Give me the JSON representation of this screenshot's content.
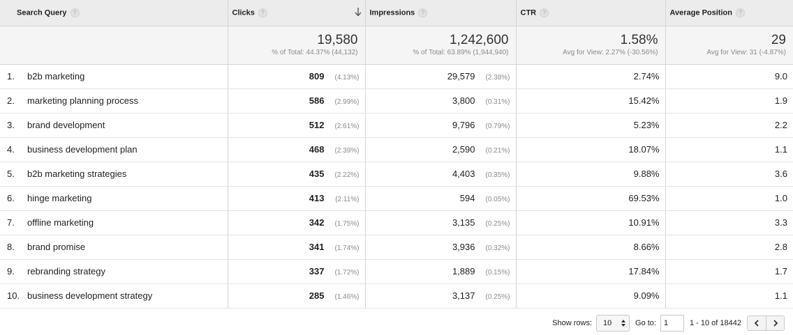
{
  "columns": {
    "query": "Search Query",
    "clicks": "Clicks",
    "impressions": "Impressions",
    "ctr": "CTR",
    "position": "Average Position",
    "help": "?"
  },
  "totals": {
    "clicks": {
      "value": "19,580",
      "sub": "% of Total: 44.37% (44,132)"
    },
    "impressions": {
      "value": "1,242,600",
      "sub": "% of Total: 63.89% (1,944,940)"
    },
    "ctr": {
      "value": "1.58%",
      "sub": "Avg for View: 2.27% (-30.56%)"
    },
    "position": {
      "value": "29",
      "sub": "Avg for View: 31 (-4.87%)"
    }
  },
  "rows": [
    {
      "idx": "1.",
      "query": "b2b marketing",
      "clicks": "809",
      "clicks_pct": "(4.13%)",
      "impressions": "29,579",
      "impressions_pct": "(2.38%)",
      "ctr": "2.74%",
      "position": "9.0"
    },
    {
      "idx": "2.",
      "query": "marketing planning process",
      "clicks": "586",
      "clicks_pct": "(2.99%)",
      "impressions": "3,800",
      "impressions_pct": "(0.31%)",
      "ctr": "15.42%",
      "position": "1.9"
    },
    {
      "idx": "3.",
      "query": "brand development",
      "clicks": "512",
      "clicks_pct": "(2.61%)",
      "impressions": "9,796",
      "impressions_pct": "(0.79%)",
      "ctr": "5.23%",
      "position": "2.2"
    },
    {
      "idx": "4.",
      "query": "business development plan",
      "clicks": "468",
      "clicks_pct": "(2.39%)",
      "impressions": "2,590",
      "impressions_pct": "(0.21%)",
      "ctr": "18.07%",
      "position": "1.1"
    },
    {
      "idx": "5.",
      "query": "b2b marketing strategies",
      "clicks": "435",
      "clicks_pct": "(2.22%)",
      "impressions": "4,403",
      "impressions_pct": "(0.35%)",
      "ctr": "9.88%",
      "position": "3.6"
    },
    {
      "idx": "6.",
      "query": "hinge marketing",
      "clicks": "413",
      "clicks_pct": "(2.11%)",
      "impressions": "594",
      "impressions_pct": "(0.05%)",
      "ctr": "69.53%",
      "position": "1.0"
    },
    {
      "idx": "7.",
      "query": "offline marketing",
      "clicks": "342",
      "clicks_pct": "(1.75%)",
      "impressions": "3,135",
      "impressions_pct": "(0.25%)",
      "ctr": "10.91%",
      "position": "3.3"
    },
    {
      "idx": "8.",
      "query": "brand promise",
      "clicks": "341",
      "clicks_pct": "(1.74%)",
      "impressions": "3,936",
      "impressions_pct": "(0.32%)",
      "ctr": "8.66%",
      "position": "2.8"
    },
    {
      "idx": "9.",
      "query": "rebranding strategy",
      "clicks": "337",
      "clicks_pct": "(1.72%)",
      "impressions": "1,889",
      "impressions_pct": "(0.15%)",
      "ctr": "17.84%",
      "position": "1.7"
    },
    {
      "idx": "10.",
      "query": "business development strategy",
      "clicks": "285",
      "clicks_pct": "(1.46%)",
      "impressions": "3,137",
      "impressions_pct": "(0.25%)",
      "ctr": "9.09%",
      "position": "1.1"
    }
  ],
  "footer": {
    "show_rows_label": "Show rows:",
    "show_rows_value": "10",
    "goto_label": "Go to:",
    "goto_value": "1",
    "range_text": "1 - 10 of 18442"
  },
  "icons": {
    "sort": "arrow-down-icon",
    "help": "question-circle-icon",
    "prev": "chevron-left-icon",
    "next": "chevron-right-icon",
    "select": "up-down-arrows-icon"
  }
}
